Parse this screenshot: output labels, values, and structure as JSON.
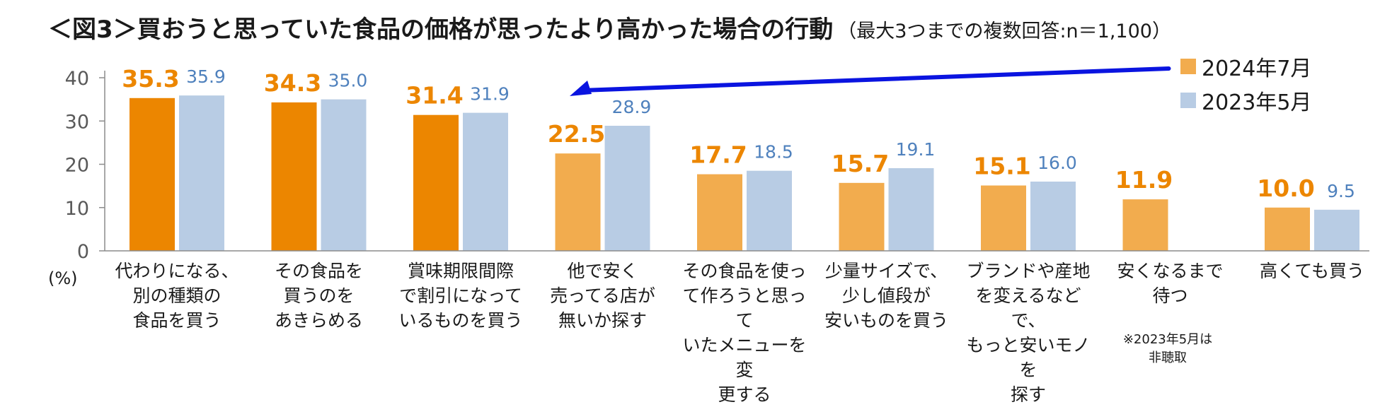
{
  "title": {
    "main": "＜図3＞買おうと思っていた食品の価格が思ったより高かった場合の行動",
    "sub": "（最大3つまでの複数回答:n＝1,100）"
  },
  "legend": [
    {
      "name": "2024年7月",
      "color": "#f2ac4e"
    },
    {
      "name": "2023年5月",
      "color": "#b8cce4"
    }
  ],
  "unit_label": "(%)",
  "footnote": "※2023年5月は\n非聴取",
  "colors": {
    "series_2024_highlight": "#ec8600",
    "series_2024": "#f2ac4e",
    "series_2023": "#b8cce4",
    "label_2024": "#ec8600",
    "label_2023": "#4f81bd",
    "arrow": "#0a14e0"
  },
  "chart_data": {
    "type": "bar",
    "ylim": [
      0,
      40
    ],
    "yticks": [
      0,
      10,
      20,
      30,
      40
    ],
    "ylabel": "(%)",
    "categories": [
      "代わりになる、\n別の種類の\n食品を買う",
      "その食品を\n買うのを\nあきらめる",
      "賞味期限間際\nで割引になって\nいるものを買う",
      "他で安く\n売ってる店が\n無いか探す",
      "その食品を使っ\nて作ろうと思って\nいたメニューを変\n更する",
      "少量サイズで、\n少し値段が\n安いものを買う",
      "ブランドや産地\nを変えるなどで、\nもっと安いモノを\n探す",
      "安くなるまで\n待つ",
      "高くても買う"
    ],
    "series": [
      {
        "name": "2024年7月",
        "values": [
          35.3,
          34.3,
          31.4,
          22.5,
          17.7,
          15.7,
          15.1,
          11.9,
          10.0
        ],
        "labels": [
          "35.3",
          "34.3",
          "31.4",
          "22.5",
          "17.7",
          "15.7",
          "15.1",
          "11.9",
          "10.0"
        ]
      },
      {
        "name": "2023年5月",
        "values": [
          35.9,
          35.0,
          31.9,
          28.9,
          18.5,
          19.1,
          16.0,
          null,
          9.5
        ],
        "labels": [
          "35.9",
          "35.0",
          "31.9",
          "28.9",
          "18.5",
          "19.1",
          "16.0",
          "",
          "9.5"
        ]
      }
    ],
    "highlight_top": 3,
    "annotations": [
      {
        "type": "arrow",
        "target_category": 3,
        "description": "decrease from 28.9 to 22.5"
      }
    ]
  }
}
